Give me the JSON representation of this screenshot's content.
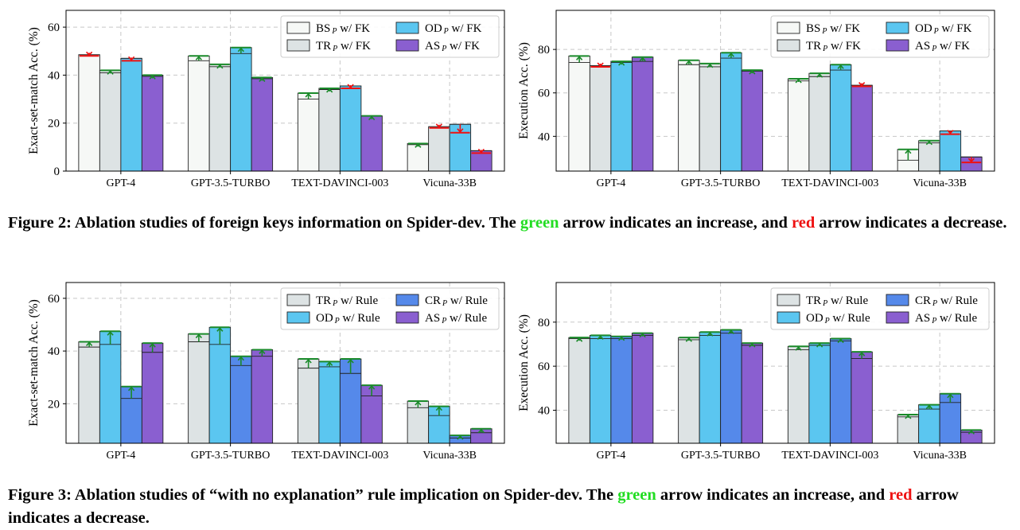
{
  "figure2": {
    "caption": {
      "prefix": "Figure 2: Ablation studies of foreign keys information on Spider-dev. The ",
      "green": "green",
      "middle": " arrow indicates an increase, and ",
      "red": "red",
      "suffix": " arrow indicates a decrease."
    }
  },
  "figure3": {
    "caption": {
      "prefix": "Figure 3: Ablation studies of “with no explanation” rule implication on Spider-dev. The ",
      "green": "green",
      "middle": " arrow indicates an increase, and ",
      "red": "red",
      "suffix": " arrow indicates a decrease."
    }
  },
  "colors": {
    "BS": "#f6f8f6",
    "TR": "#dde3e4",
    "OD": "#5bc6f0",
    "CR": "#5589ea",
    "AS": "#8a5fd0",
    "increase": "#1a8a2a",
    "decrease": "#ee1111"
  },
  "chart_data": [
    {
      "type": "bar",
      "ylabel": "Exact-set-match Acc. (%)",
      "categories": [
        "GPT-4",
        "GPT-3.5-TURBO",
        "TEXT-DAVINCI-003",
        "Vicuna-33B"
      ],
      "ylim": [
        0,
        67
      ],
      "yticks": [
        0,
        20,
        40,
        60
      ],
      "grid": true,
      "legend_position": "top-right",
      "series": [
        {
          "key": "BS",
          "name": "BS",
          "suffix": " w/ FK",
          "base": [
            48.5,
            46,
            30,
            11
          ],
          "with": [
            48,
            48,
            32.5,
            11.5
          ]
        },
        {
          "key": "TR",
          "name": "TR",
          "suffix": " w/ FK",
          "base": [
            41,
            43.5,
            34,
            18.5
          ],
          "with": [
            42,
            44.5,
            34.5,
            18
          ]
        },
        {
          "key": "OD",
          "name": "OD",
          "suffix": " w/ FK",
          "base": [
            47,
            49,
            35.5,
            19.5
          ],
          "with": [
            46,
            51.5,
            34.5,
            16
          ]
        },
        {
          "key": "AS",
          "name": "AS",
          "suffix": " w/ FK",
          "base": [
            39.5,
            38.5,
            23,
            8.5
          ],
          "with": [
            40,
            39,
            23,
            7.5
          ]
        }
      ]
    },
    {
      "type": "bar",
      "ylabel": "Execution Acc. (%)",
      "categories": [
        "GPT-4",
        "GPT-3.5-TURBO",
        "TEXT-DAVINCI-003",
        "Vicuna-33B"
      ],
      "ylim": [
        24,
        98
      ],
      "yticks": [
        40,
        60,
        80
      ],
      "grid": true,
      "legend_position": "top-right",
      "series": [
        {
          "key": "BS",
          "name": "BS",
          "suffix": " w/ FK",
          "base": [
            74,
            73,
            65.5,
            29
          ],
          "with": [
            77,
            75,
            66.5,
            34
          ]
        },
        {
          "key": "TR",
          "name": "TR",
          "suffix": " w/ FK",
          "base": [
            72.5,
            72,
            67.5,
            37
          ],
          "with": [
            72,
            73.5,
            69,
            38
          ]
        },
        {
          "key": "OD",
          "name": "OD",
          "suffix": " w/ FK",
          "base": [
            74,
            76,
            70.5,
            42.5
          ],
          "with": [
            74.5,
            78.5,
            73,
            41
          ]
        },
        {
          "key": "AS",
          "name": "AS",
          "suffix": " w/ FK",
          "base": [
            74.5,
            70,
            63.5,
            30.5
          ],
          "with": [
            76.5,
            70.5,
            63,
            28
          ]
        }
      ]
    },
    {
      "type": "bar",
      "ylabel": "Exact-set-match Acc. (%)",
      "categories": [
        "GPT-4",
        "GPT-3.5-TURBO",
        "TEXT-DAVINCI-003",
        "Vicuna-33B"
      ],
      "ylim": [
        5,
        66
      ],
      "yticks": [
        20,
        40,
        60
      ],
      "grid": true,
      "legend_position": "top-right",
      "series": [
        {
          "key": "TR",
          "name": "TR",
          "suffix": " w/ Rule",
          "base": [
            41.5,
            43.5,
            33.5,
            18.5
          ],
          "with": [
            43.5,
            46.5,
            37,
            21
          ]
        },
        {
          "key": "OD",
          "name": "OD",
          "suffix": " w/ Rule",
          "base": [
            42.5,
            42.5,
            34,
            15.5
          ],
          "with": [
            47.5,
            49,
            36,
            19
          ]
        },
        {
          "key": "CR",
          "name": "CR",
          "suffix": " w/ Rule",
          "base": [
            22,
            34.5,
            31.5,
            7
          ],
          "with": [
            26.5,
            38,
            37,
            8
          ]
        },
        {
          "key": "AS",
          "name": "AS",
          "suffix": " w/ Rule",
          "base": [
            39.5,
            38,
            23,
            9
          ],
          "with": [
            43,
            40.5,
            27,
            10.5
          ]
        }
      ]
    },
    {
      "type": "bar",
      "ylabel": "Execution Acc. (%)",
      "categories": [
        "GPT-4",
        "GPT-3.5-TURBO",
        "TEXT-DAVINCI-003",
        "Vicuna-33B"
      ],
      "ylim": [
        25,
        98
      ],
      "yticks": [
        40,
        60,
        80
      ],
      "grid": true,
      "legend_position": "top-right",
      "series": [
        {
          "key": "TR",
          "name": "TR",
          "suffix": " w/ Rule",
          "base": [
            72.5,
            72,
            67.5,
            37
          ],
          "with": [
            73,
            73,
            69,
            38
          ]
        },
        {
          "key": "OD",
          "name": "OD",
          "suffix": " w/ Rule",
          "base": [
            72.5,
            74,
            69.5,
            40.5
          ],
          "with": [
            74,
            75.5,
            70.5,
            42.5
          ]
        },
        {
          "key": "CR",
          "name": "CR",
          "suffix": " w/ Rule",
          "base": [
            72.5,
            75,
            71.5,
            43.5
          ],
          "with": [
            73.5,
            76.5,
            72.5,
            47.5
          ]
        },
        {
          "key": "AS",
          "name": "AS",
          "suffix": " w/ Rule",
          "base": [
            74,
            69.5,
            63.5,
            30
          ],
          "with": [
            75,
            70.5,
            66.5,
            31
          ]
        }
      ]
    }
  ]
}
